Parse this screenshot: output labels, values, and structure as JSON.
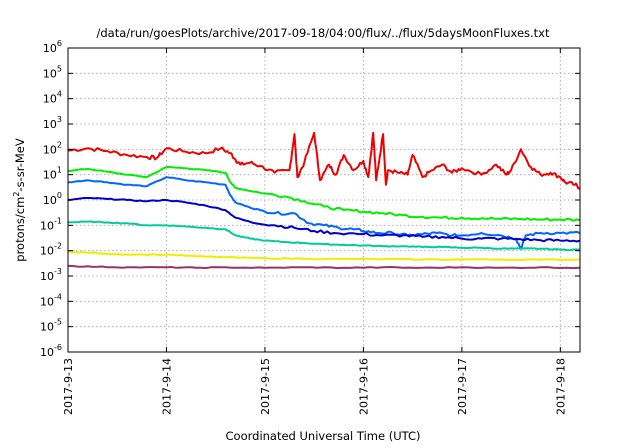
{
  "chart_data": {
    "type": "line",
    "title": "/data/run/goesPlots/archive/2017-09-18/04:00/flux/../flux/5daysMoonFluxes.txt",
    "xlabel": "Coordinated Universal Time (UTC)",
    "ylabel": {
      "pre": "protons/cm",
      "sup": "2",
      "post": "-s-sr-MeV"
    },
    "y_scale": "log",
    "ylim_exp": [
      -6,
      6
    ],
    "y_tick_labels": [
      {
        "base": "10",
        "exp": "-6"
      },
      {
        "base": "10",
        "exp": "-5"
      },
      {
        "base": "10",
        "exp": "-4"
      },
      {
        "base": "10",
        "exp": "-3"
      },
      {
        "base": "10",
        "exp": "-2"
      },
      {
        "base": "10",
        "exp": "-1"
      },
      {
        "base": "10",
        "exp": "0"
      },
      {
        "base": "10",
        "exp": "1"
      },
      {
        "base": "10",
        "exp": "2"
      },
      {
        "base": "10",
        "exp": "3"
      },
      {
        "base": "10",
        "exp": "4"
      },
      {
        "base": "10",
        "exp": "5"
      },
      {
        "base": "10",
        "exp": "6"
      }
    ],
    "x_tick_labels": [
      "2017-9-13",
      "2017-9-14",
      "2017-9-15",
      "2017-9-16",
      "2017-9-17",
      "2017-9-18"
    ],
    "xlim_days": [
      13.0,
      18.2
    ],
    "grid": true,
    "legend": "none",
    "series": [
      {
        "color": "#ee0000",
        "points": [
          [
            13.0,
            90
          ],
          [
            13.2,
            110
          ],
          [
            13.4,
            85
          ],
          [
            13.6,
            60
          ],
          [
            13.8,
            50
          ],
          [
            13.9,
            45
          ],
          [
            14.0,
            110
          ],
          [
            14.2,
            80
          ],
          [
            14.4,
            70
          ],
          [
            14.55,
            110
          ],
          [
            14.65,
            70
          ],
          [
            14.7,
            40
          ],
          [
            14.75,
            25
          ],
          [
            14.85,
            30
          ],
          [
            14.95,
            22
          ],
          [
            15.1,
            12
          ],
          [
            15.25,
            15
          ],
          [
            15.3,
            400
          ],
          [
            15.33,
            8
          ],
          [
            15.4,
            30
          ],
          [
            15.5,
            450
          ],
          [
            15.56,
            6
          ],
          [
            15.65,
            25
          ],
          [
            15.72,
            10
          ],
          [
            15.8,
            60
          ],
          [
            15.9,
            15
          ],
          [
            16.0,
            35
          ],
          [
            16.05,
            8
          ],
          [
            16.1,
            450
          ],
          [
            16.13,
            6
          ],
          [
            16.2,
            400
          ],
          [
            16.23,
            4
          ],
          [
            16.25,
            15
          ],
          [
            16.35,
            12
          ],
          [
            16.45,
            10
          ],
          [
            16.5,
            60
          ],
          [
            16.6,
            8
          ],
          [
            16.7,
            15
          ],
          [
            16.8,
            25
          ],
          [
            16.9,
            12
          ],
          [
            17.0,
            18
          ],
          [
            17.2,
            10
          ],
          [
            17.35,
            25
          ],
          [
            17.45,
            10
          ],
          [
            17.5,
            15
          ],
          [
            17.6,
            100
          ],
          [
            17.7,
            20
          ],
          [
            17.8,
            10
          ],
          [
            17.9,
            12
          ],
          [
            18.0,
            8
          ],
          [
            18.05,
            5
          ],
          [
            18.15,
            4
          ],
          [
            18.2,
            3
          ]
        ]
      },
      {
        "color": "#00ee00",
        "points": [
          [
            13.0,
            14
          ],
          [
            13.2,
            17
          ],
          [
            13.4,
            13
          ],
          [
            13.6,
            10
          ],
          [
            13.8,
            8
          ],
          [
            14.0,
            20
          ],
          [
            14.2,
            18
          ],
          [
            14.4,
            15
          ],
          [
            14.6,
            12
          ],
          [
            14.65,
            5
          ],
          [
            14.7,
            3
          ],
          [
            14.8,
            2.5
          ],
          [
            15.0,
            1.8
          ],
          [
            15.2,
            1.4
          ],
          [
            15.4,
            0.9
          ],
          [
            15.6,
            0.55
          ],
          [
            15.8,
            0.4
          ],
          [
            16.0,
            0.35
          ],
          [
            16.2,
            0.3
          ],
          [
            16.4,
            0.25
          ],
          [
            16.6,
            0.22
          ],
          [
            16.8,
            0.2
          ],
          [
            17.0,
            0.2
          ],
          [
            17.2,
            0.19
          ],
          [
            17.4,
            0.18
          ],
          [
            17.6,
            0.18
          ],
          [
            17.8,
            0.17
          ],
          [
            18.0,
            0.17
          ],
          [
            18.2,
            0.16
          ]
        ]
      },
      {
        "color": "#0066ff",
        "points": [
          [
            13.0,
            5
          ],
          [
            13.2,
            6
          ],
          [
            13.4,
            5
          ],
          [
            13.6,
            4
          ],
          [
            13.8,
            3.5
          ],
          [
            14.0,
            8
          ],
          [
            14.2,
            6
          ],
          [
            14.4,
            5
          ],
          [
            14.6,
            4
          ],
          [
            14.65,
            1.5
          ],
          [
            14.7,
            0.8
          ],
          [
            14.85,
            0.5
          ],
          [
            14.95,
            0.4
          ],
          [
            15.1,
            0.3
          ],
          [
            15.3,
            0.3
          ],
          [
            15.45,
            0.12
          ],
          [
            15.6,
            0.1
          ],
          [
            15.75,
            0.08
          ],
          [
            15.9,
            0.07
          ],
          [
            16.0,
            0.06
          ],
          [
            16.15,
            0.05
          ],
          [
            16.3,
            0.05
          ],
          [
            16.45,
            0.04
          ],
          [
            16.6,
            0.045
          ],
          [
            16.75,
            0.05
          ],
          [
            16.9,
            0.04
          ],
          [
            17.0,
            0.04
          ],
          [
            17.2,
            0.05
          ],
          [
            17.4,
            0.04
          ],
          [
            17.55,
            0.03
          ],
          [
            17.6,
            0.012
          ],
          [
            17.65,
            0.04
          ],
          [
            17.8,
            0.05
          ],
          [
            18.0,
            0.05
          ],
          [
            18.2,
            0.05
          ]
        ]
      },
      {
        "color": "#0000cc",
        "points": [
          [
            13.0,
            1.0
          ],
          [
            13.2,
            1.2
          ],
          [
            13.4,
            1.1
          ],
          [
            13.6,
            1.0
          ],
          [
            13.8,
            0.9
          ],
          [
            14.0,
            1.0
          ],
          [
            14.2,
            0.8
          ],
          [
            14.4,
            0.6
          ],
          [
            14.6,
            0.4
          ],
          [
            14.7,
            0.2
          ],
          [
            14.9,
            0.12
          ],
          [
            15.1,
            0.1
          ],
          [
            15.3,
            0.08
          ],
          [
            15.5,
            0.06
          ],
          [
            15.7,
            0.05
          ],
          [
            16.0,
            0.045
          ],
          [
            16.2,
            0.04
          ],
          [
            16.4,
            0.04
          ],
          [
            16.6,
            0.035
          ],
          [
            16.8,
            0.035
          ],
          [
            17.0,
            0.03
          ],
          [
            17.2,
            0.03
          ],
          [
            17.4,
            0.03
          ],
          [
            17.6,
            0.028
          ],
          [
            17.8,
            0.026
          ],
          [
            18.0,
            0.025
          ],
          [
            18.2,
            0.025
          ]
        ]
      },
      {
        "color": "#00cc99",
        "points": [
          [
            13.0,
            0.13
          ],
          [
            13.2,
            0.14
          ],
          [
            13.4,
            0.13
          ],
          [
            13.6,
            0.12
          ],
          [
            13.8,
            0.1
          ],
          [
            14.0,
            0.1
          ],
          [
            14.2,
            0.09
          ],
          [
            14.4,
            0.08
          ],
          [
            14.6,
            0.07
          ],
          [
            14.7,
            0.04
          ],
          [
            14.85,
            0.03
          ],
          [
            15.0,
            0.025
          ],
          [
            15.2,
            0.022
          ],
          [
            15.4,
            0.02
          ],
          [
            15.6,
            0.018
          ],
          [
            15.8,
            0.017
          ],
          [
            16.0,
            0.016
          ],
          [
            16.2,
            0.015
          ],
          [
            16.4,
            0.015
          ],
          [
            16.6,
            0.014
          ],
          [
            16.8,
            0.014
          ],
          [
            17.0,
            0.013
          ],
          [
            17.2,
            0.013
          ],
          [
            17.4,
            0.012
          ],
          [
            17.6,
            0.012
          ],
          [
            17.8,
            0.012
          ],
          [
            18.0,
            0.011
          ],
          [
            18.2,
            0.011
          ]
        ]
      },
      {
        "color": "#eeee00",
        "points": [
          [
            13.0,
            0.009
          ],
          [
            13.3,
            0.008
          ],
          [
            13.6,
            0.007
          ],
          [
            14.0,
            0.007
          ],
          [
            14.3,
            0.006
          ],
          [
            14.6,
            0.0055
          ],
          [
            15.0,
            0.005
          ],
          [
            15.4,
            0.0048
          ],
          [
            15.8,
            0.0047
          ],
          [
            16.2,
            0.0046
          ],
          [
            16.6,
            0.0045
          ],
          [
            17.0,
            0.0045
          ],
          [
            17.4,
            0.0045
          ],
          [
            17.8,
            0.0044
          ],
          [
            18.2,
            0.0045
          ]
        ]
      },
      {
        "color": "#993366",
        "points": [
          [
            13.0,
            0.0025
          ],
          [
            13.3,
            0.0023
          ],
          [
            13.6,
            0.0022
          ],
          [
            14.0,
            0.0022
          ],
          [
            14.3,
            0.0021
          ],
          [
            14.6,
            0.0022
          ],
          [
            15.0,
            0.0021
          ],
          [
            15.4,
            0.0022
          ],
          [
            15.8,
            0.0021
          ],
          [
            16.2,
            0.0022
          ],
          [
            16.6,
            0.0021
          ],
          [
            17.0,
            0.0022
          ],
          [
            17.4,
            0.0021
          ],
          [
            17.8,
            0.0022
          ],
          [
            18.2,
            0.0021
          ]
        ]
      }
    ]
  }
}
